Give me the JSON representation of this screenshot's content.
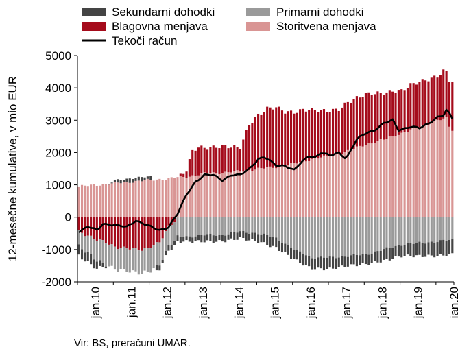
{
  "chart_data": {
    "type": "bar",
    "stacked": true,
    "ylabel": "12-mesečne kumulative, v mio EUR",
    "ylim": [
      -2000,
      5000
    ],
    "yticks": [
      -2000,
      -1000,
      0,
      1000,
      2000,
      3000,
      4000,
      5000
    ],
    "xtick_labels": [
      "jan.10",
      "jan.11",
      "jan.12",
      "jan.13",
      "jan.14",
      "jan.15",
      "jan.16",
      "jan.17",
      "jan.18",
      "jan.19",
      "jan.20"
    ],
    "grid": false,
    "legend_position": "top",
    "legend": [
      {
        "name": "Sekundarni dohodki",
        "kind": "bar",
        "color": "#444444"
      },
      {
        "name": "Primarni dohodki",
        "kind": "bar",
        "color": "#9a9a9a"
      },
      {
        "name": "Blagovna menjava",
        "kind": "bar",
        "color": "#a50b1b"
      },
      {
        "name": "Storitvena menjava",
        "kind": "bar",
        "color": "#d99594"
      },
      {
        "name": "Tekoči račun",
        "kind": "line",
        "color": "#000000"
      }
    ],
    "series_points": {
      "Storitvena menjava": [
        [
          0,
          950
        ],
        [
          6,
          1000
        ],
        [
          12,
          1050
        ],
        [
          18,
          1100
        ],
        [
          24,
          1150
        ],
        [
          30,
          1200
        ],
        [
          36,
          1250
        ],
        [
          42,
          1350
        ],
        [
          48,
          1380
        ],
        [
          54,
          1420
        ],
        [
          60,
          1500
        ],
        [
          66,
          1550
        ],
        [
          72,
          1650
        ],
        [
          78,
          1800
        ],
        [
          84,
          1900
        ],
        [
          90,
          2050
        ],
        [
          96,
          2250
        ],
        [
          102,
          2400
        ],
        [
          108,
          2600
        ],
        [
          114,
          2800
        ],
        [
          120,
          3000
        ],
        [
          123,
          3050
        ],
        [
          124,
          2800
        ],
        [
          125,
          2700
        ]
      ],
      "Blagovna menjava": [
        [
          0,
          -450
        ],
        [
          3,
          -550
        ],
        [
          6,
          -700
        ],
        [
          9,
          -800
        ],
        [
          12,
          -900
        ],
        [
          15,
          -950
        ],
        [
          18,
          -1000
        ],
        [
          21,
          -1000
        ],
        [
          24,
          -900
        ],
        [
          27,
          -800
        ],
        [
          30,
          -300
        ],
        [
          33,
          0
        ],
        [
          36,
          200
        ],
        [
          38,
          750
        ],
        [
          40,
          850
        ],
        [
          42,
          800
        ],
        [
          45,
          800
        ],
        [
          48,
          800
        ],
        [
          51,
          780
        ],
        [
          54,
          750
        ],
        [
          57,
          1400
        ],
        [
          60,
          1650
        ],
        [
          63,
          1850
        ],
        [
          66,
          1850
        ],
        [
          69,
          1650
        ],
        [
          72,
          1600
        ],
        [
          75,
          1600
        ],
        [
          78,
          1500
        ],
        [
          81,
          1450
        ],
        [
          84,
          1400
        ],
        [
          87,
          1350
        ],
        [
          90,
          1500
        ],
        [
          93,
          1550
        ],
        [
          96,
          1550
        ],
        [
          99,
          1500
        ],
        [
          102,
          1450
        ],
        [
          105,
          1400
        ],
        [
          108,
          1300
        ],
        [
          111,
          1400
        ],
        [
          114,
          1400
        ],
        [
          117,
          1350
        ],
        [
          120,
          1350
        ],
        [
          122,
          1500
        ],
        [
          123,
          1450
        ],
        [
          124,
          1450
        ],
        [
          125,
          1500
        ]
      ],
      "Primarni dohodki": [
        [
          0,
          -450
        ],
        [
          6,
          -650
        ],
        [
          12,
          -700
        ],
        [
          18,
          -700
        ],
        [
          24,
          -750
        ],
        [
          30,
          -600
        ],
        [
          36,
          -600
        ],
        [
          42,
          -550
        ],
        [
          48,
          -550
        ],
        [
          54,
          -450
        ],
        [
          60,
          -500
        ],
        [
          66,
          -650
        ],
        [
          72,
          -1000
        ],
        [
          78,
          -1250
        ],
        [
          84,
          -1250
        ],
        [
          90,
          -1200
        ],
        [
          96,
          -1150
        ],
        [
          102,
          -1000
        ],
        [
          108,
          -850
        ],
        [
          114,
          -800
        ],
        [
          120,
          -750
        ],
        [
          125,
          -700
        ]
      ],
      "Sekundarni dohodki": [
        [
          0,
          -300
        ],
        [
          6,
          -250
        ],
        [
          12,
          100
        ],
        [
          18,
          100
        ],
        [
          24,
          120
        ],
        [
          26,
          -150
        ],
        [
          30,
          -150
        ],
        [
          36,
          -150
        ],
        [
          42,
          -200
        ],
        [
          48,
          -200
        ],
        [
          54,
          -200
        ],
        [
          60,
          -250
        ],
        [
          66,
          -300
        ],
        [
          72,
          -300
        ],
        [
          78,
          -350
        ],
        [
          84,
          -350
        ],
        [
          90,
          -300
        ],
        [
          96,
          -300
        ],
        [
          102,
          -350
        ],
        [
          108,
          -350
        ],
        [
          114,
          -400
        ],
        [
          120,
          -450
        ],
        [
          125,
          -450
        ]
      ]
    },
    "current_account_points": [
      [
        0,
        -450
      ],
      [
        3,
        -300
      ],
      [
        6,
        -400
      ],
      [
        8,
        -200
      ],
      [
        12,
        -250
      ],
      [
        16,
        -300
      ],
      [
        19,
        -100
      ],
      [
        24,
        -300
      ],
      [
        27,
        -400
      ],
      [
        30,
        -300
      ],
      [
        33,
        100
      ],
      [
        36,
        700
      ],
      [
        39,
        1100
      ],
      [
        42,
        1300
      ],
      [
        45,
        1300
      ],
      [
        48,
        1150
      ],
      [
        51,
        1300
      ],
      [
        54,
        1300
      ],
      [
        57,
        1500
      ],
      [
        60,
        1800
      ],
      [
        62,
        1850
      ],
      [
        63,
        1800
      ],
      [
        66,
        1600
      ],
      [
        69,
        1600
      ],
      [
        72,
        1450
      ],
      [
        74,
        1650
      ],
      [
        77,
        1900
      ],
      [
        79,
        1850
      ],
      [
        81,
        2000
      ],
      [
        84,
        1900
      ],
      [
        87,
        2000
      ],
      [
        89,
        1850
      ],
      [
        90,
        1900
      ],
      [
        93,
        2400
      ],
      [
        96,
        2600
      ],
      [
        99,
        2700
      ],
      [
        102,
        2900
      ],
      [
        105,
        3000
      ],
      [
        107,
        2700
      ],
      [
        109,
        2750
      ],
      [
        111,
        2800
      ],
      [
        114,
        2750
      ],
      [
        117,
        2900
      ],
      [
        120,
        3100
      ],
      [
        122,
        3150
      ],
      [
        123,
        3300
      ],
      [
        124,
        3200
      ],
      [
        125,
        3050
      ]
    ],
    "periods": 126,
    "first_period": "jan.10"
  },
  "source_note": "Vir: BS, preračuni UMAR."
}
